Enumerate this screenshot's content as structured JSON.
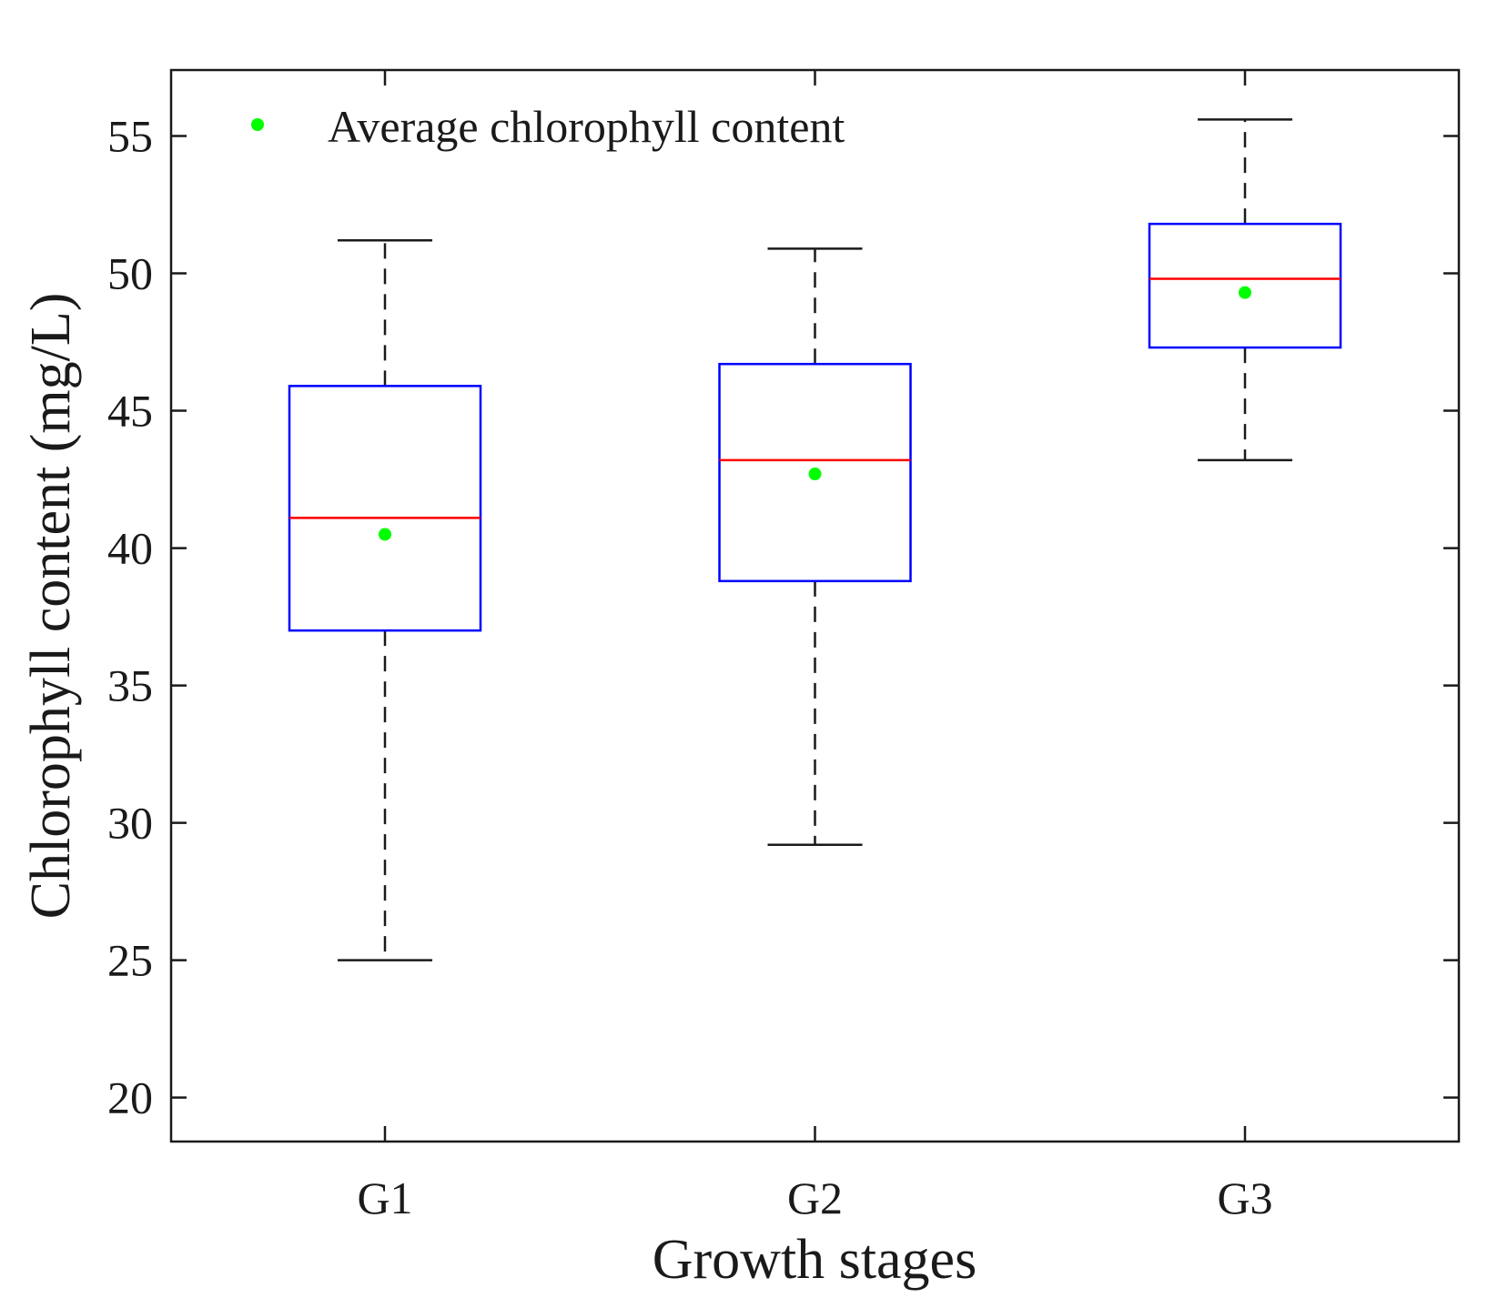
{
  "chart_data": {
    "type": "boxplot",
    "xlabel": "Growth stages",
    "ylabel": "Chlorophyll content (mg/L)",
    "ylim": [
      18.4,
      57.4
    ],
    "yticks": [
      20,
      25,
      30,
      35,
      40,
      45,
      50,
      55
    ],
    "categories": [
      "G1",
      "G2",
      "G3"
    ],
    "boxes": [
      {
        "name": "G1",
        "whisker_low": 25.0,
        "q1": 37.0,
        "median": 41.1,
        "q3": 45.9,
        "whisker_high": 51.2,
        "mean": 40.5
      },
      {
        "name": "G2",
        "whisker_low": 29.2,
        "q1": 38.8,
        "median": 43.2,
        "q3": 46.7,
        "whisker_high": 50.9,
        "mean": 42.7
      },
      {
        "name": "G3",
        "whisker_low": 43.2,
        "q1": 47.3,
        "median": 49.8,
        "q3": 51.8,
        "whisker_high": 55.6,
        "mean": 49.3
      }
    ],
    "legend": {
      "label": "Average chlorophyll content",
      "position": "top-left"
    },
    "colors": {
      "box": "#0000ff",
      "median": "#ff0000",
      "mean": "#00ff00",
      "whisker": "#1a1a1a",
      "axis": "#1a1a1a"
    }
  }
}
